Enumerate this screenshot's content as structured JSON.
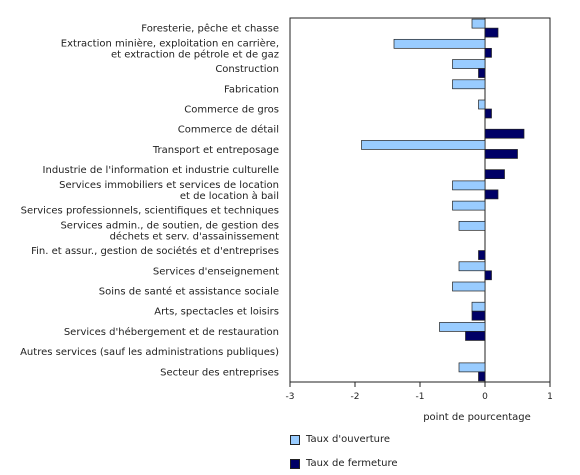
{
  "chart_data": {
    "type": "bar",
    "orientation": "horizontal",
    "xlabel": "point de pourcentage",
    "xlim": [
      -3,
      1
    ],
    "xticks": [
      -3,
      -2,
      -1,
      0,
      1
    ],
    "grid": false,
    "legend_position": "bottom",
    "categories": [
      [
        "Foresterie, pêche et chasse"
      ],
      [
        "Extraction minière, exploitation en carrière,",
        "et extraction de pétrole et de gaz"
      ],
      [
        "Construction"
      ],
      [
        "Fabrication"
      ],
      [
        "Commerce de gros"
      ],
      [
        "Commerce de détail"
      ],
      [
        "Transport et entreposage"
      ],
      [
        "Industrie de l'information et industrie culturelle"
      ],
      [
        "Services immobiliers et services de location",
        "et de location à bail"
      ],
      [
        "Services professionnels, scientifiques et techniques"
      ],
      [
        "Services admin., de soutien, de gestion des",
        "déchets et serv. d'assainissement"
      ],
      [
        "Fin. et assur., gestion de sociétés et d'entreprises"
      ],
      [
        "Services d'enseignement"
      ],
      [
        "Soins de santé et assistance sociale"
      ],
      [
        "Arts, spectacles et loisirs"
      ],
      [
        "Services d'hébergement et de restauration"
      ],
      [
        "Autres services (sauf les administrations publiques)"
      ],
      [
        "Secteur des entreprises"
      ]
    ],
    "series": [
      {
        "name": "Taux d'ouverture",
        "color": "#99ccff",
        "values": [
          -0.2,
          -1.4,
          -0.5,
          -0.5,
          -0.1,
          0.0,
          -1.9,
          0.0,
          -0.5,
          -0.5,
          -0.4,
          0.0,
          -0.4,
          -0.5,
          -0.2,
          -0.7,
          0.0,
          -0.4
        ]
      },
      {
        "name": "Taux de fermeture",
        "color": "#000066",
        "values": [
          0.2,
          0.1,
          -0.1,
          0.0,
          0.1,
          0.6,
          0.5,
          0.3,
          0.2,
          0.0,
          0.0,
          -0.1,
          0.1,
          0.0,
          -0.2,
          -0.3,
          0.0,
          -0.1
        ]
      }
    ]
  }
}
